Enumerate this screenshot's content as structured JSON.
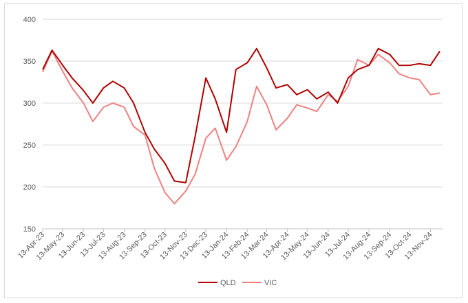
{
  "chart_data": {
    "type": "line",
    "title": "",
    "xlabel": "",
    "ylabel": "",
    "ylim": [
      150,
      400
    ],
    "yticks": [
      150,
      200,
      250,
      300,
      350,
      400
    ],
    "x_tick_labels": [
      "13-Apr-23",
      "13-May-23",
      "13-Jun-23",
      "13-Jul-23",
      "13-Aug-23",
      "13-Sep-23",
      "13-Oct-23",
      "13-Nov-23",
      "13-Dec-23",
      "13-Jan-24",
      "13-Feb-24",
      "13-Mar-24",
      "13-Apr-24",
      "13-May-24",
      "13-Jun-24",
      "13-Jul-24",
      "13-Aug-24",
      "13-Sep-24",
      "13-Oct-24",
      "13-Nov-24"
    ],
    "x": [
      "2023-04-13",
      "2023-04-27",
      "2023-05-13",
      "2023-05-27",
      "2023-06-13",
      "2023-06-27",
      "2023-07-13",
      "2023-07-27",
      "2023-08-13",
      "2023-08-27",
      "2023-09-13",
      "2023-09-27",
      "2023-10-13",
      "2023-10-27",
      "2023-11-13",
      "2023-11-27",
      "2023-12-13",
      "2023-12-27",
      "2024-01-13",
      "2024-01-27",
      "2024-02-13",
      "2024-02-27",
      "2024-03-13",
      "2024-03-27",
      "2024-04-13",
      "2024-04-27",
      "2024-05-13",
      "2024-05-27",
      "2024-06-13",
      "2024-06-27",
      "2024-07-13",
      "2024-07-27",
      "2024-08-13",
      "2024-08-27",
      "2024-09-13",
      "2024-09-27",
      "2024-10-13",
      "2024-10-27",
      "2024-11-13",
      "2024-11-27"
    ],
    "grid": true,
    "legend_position": "bottom",
    "series": [
      {
        "name": "QLD",
        "color": "#b00000",
        "values": [
          340,
          363,
          345,
          330,
          315,
          300,
          318,
          326,
          318,
          300,
          265,
          245,
          228,
          207,
          205,
          260,
          330,
          305,
          265,
          340,
          348,
          365,
          342,
          318,
          322,
          310,
          316,
          305,
          313,
          300,
          330,
          340,
          345,
          365,
          358,
          345,
          345,
          347,
          345,
          362
        ]
      },
      {
        "name": "VIC",
        "color": "#f08080",
        "values": [
          337,
          362,
          338,
          318,
          300,
          278,
          295,
          300,
          295,
          272,
          262,
          222,
          193,
          180,
          195,
          215,
          258,
          270,
          232,
          248,
          278,
          320,
          298,
          268,
          282,
          298,
          294,
          290,
          310,
          302,
          320,
          352,
          345,
          358,
          348,
          335,
          330,
          328,
          310,
          312
        ]
      }
    ]
  }
}
